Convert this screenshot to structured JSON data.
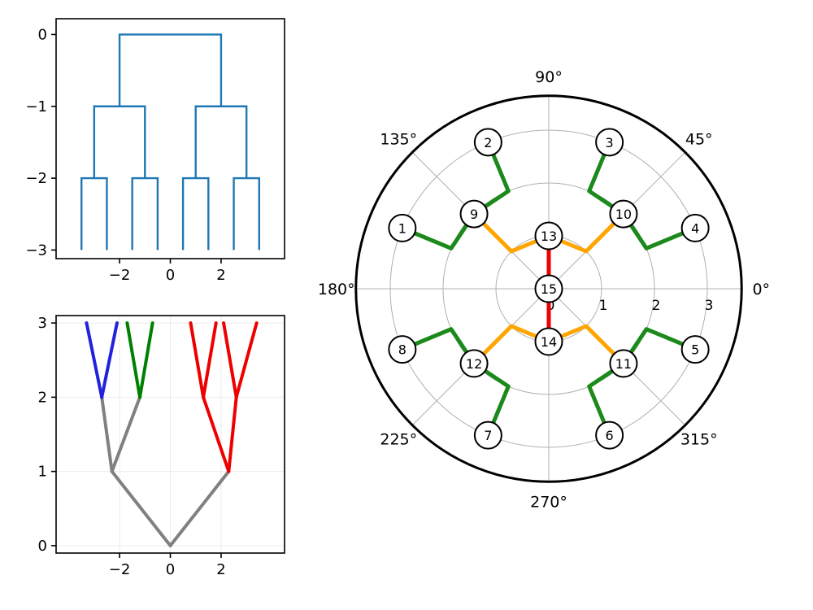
{
  "figure": {
    "background": "#ffffff",
    "description": "Three-panel tree visualization: square-link dendrogram, triangle-link colored dendrogram, and circular (polar) tree layout"
  },
  "chart_data": [
    {
      "id": "square-dendrogram",
      "type": "dendrogram",
      "link_style": "square-elbow",
      "line_color": "#1f77b4",
      "line_width": 2.4,
      "grid": false,
      "xlim": [
        -4.5,
        4.5
      ],
      "ylim": [
        -3.12,
        0.22
      ],
      "x_ticks": [
        -2,
        0,
        2
      ],
      "x_tick_labels": [
        "−2",
        "0",
        "2"
      ],
      "y_ticks": [
        0,
        -1,
        -2,
        -3
      ],
      "y_tick_labels": [
        "0",
        "−1",
        "−2",
        "−3"
      ],
      "links": [
        {
          "x1": -3.5,
          "y1": -3,
          "x2": -2.5,
          "y2": -3,
          "height": -2
        },
        {
          "x1": -1.5,
          "y1": -3,
          "x2": -0.5,
          "y2": -3,
          "height": -2
        },
        {
          "x1": 0.5,
          "y1": -3,
          "x2": 1.5,
          "y2": -3,
          "height": -2
        },
        {
          "x1": 2.5,
          "y1": -3,
          "x2": 3.5,
          "y2": -3,
          "height": -2
        },
        {
          "x1": -3,
          "y1": -2,
          "x2": -1,
          "y2": -2,
          "height": -1
        },
        {
          "x1": 1,
          "y1": -2,
          "x2": 3,
          "y2": -2,
          "height": -1
        },
        {
          "x1": -2,
          "y1": -1,
          "x2": 2,
          "y2": -1,
          "height": 0
        }
      ]
    },
    {
      "id": "triangle-dendrogram",
      "type": "dendrogram",
      "link_style": "triangle",
      "line_width": 4,
      "grid": true,
      "grid_color": "#ececec",
      "xlim": [
        -4.5,
        4.5
      ],
      "ylim": [
        -0.1,
        3.1
      ],
      "x_ticks": [
        -2,
        0,
        2
      ],
      "x_tick_labels": [
        "−2",
        "0",
        "2"
      ],
      "y_ticks": [
        0,
        1,
        2,
        3
      ],
      "y_tick_labels": [
        "0",
        "1",
        "2",
        "3"
      ],
      "cluster_colors": {
        "trunk": "#808080",
        "cluster_blue": "#2222dd",
        "cluster_green": "#008000",
        "cluster_red": "#ee0000"
      },
      "segments": [
        {
          "x1": 0,
          "y1": 0,
          "x2": -2.3,
          "y2": 1,
          "color": "#808080"
        },
        {
          "x1": 0,
          "y1": 0,
          "x2": 2.3,
          "y2": 1,
          "color": "#808080"
        },
        {
          "x1": -2.3,
          "y1": 1,
          "x2": -2.7,
          "y2": 2,
          "color": "#808080"
        },
        {
          "x1": -2.3,
          "y1": 1,
          "x2": -1.2,
          "y2": 2,
          "color": "#808080"
        },
        {
          "x1": -2.7,
          "y1": 2,
          "x2": -3.3,
          "y2": 3,
          "color": "#2222dd"
        },
        {
          "x1": -2.7,
          "y1": 2,
          "x2": -2.1,
          "y2": 3,
          "color": "#2222dd"
        },
        {
          "x1": -1.2,
          "y1": 2,
          "x2": -1.7,
          "y2": 3,
          "color": "#008000"
        },
        {
          "x1": -1.2,
          "y1": 2,
          "x2": -0.7,
          "y2": 3,
          "color": "#008000"
        },
        {
          "x1": 2.3,
          "y1": 1,
          "x2": 1.3,
          "y2": 2,
          "color": "#ee0000"
        },
        {
          "x1": 2.3,
          "y1": 1,
          "x2": 2.6,
          "y2": 2,
          "color": "#ee0000"
        },
        {
          "x1": 1.3,
          "y1": 2,
          "x2": 0.8,
          "y2": 3,
          "color": "#ee0000"
        },
        {
          "x1": 1.3,
          "y1": 2,
          "x2": 1.8,
          "y2": 3,
          "color": "#ee0000"
        },
        {
          "x1": 2.6,
          "y1": 2,
          "x2": 2.1,
          "y2": 3,
          "color": "#ee0000"
        },
        {
          "x1": 2.6,
          "y1": 2,
          "x2": 3.4,
          "y2": 3,
          "color": "#ee0000"
        }
      ]
    },
    {
      "id": "polar-tree",
      "type": "polar_tree",
      "theta_ticks_deg": [
        0,
        45,
        90,
        135,
        180,
        225,
        270,
        315
      ],
      "theta_tick_labels": [
        "0°",
        "45°",
        "90°",
        "135°",
        "180°",
        "225°",
        "270°",
        "315°"
      ],
      "r_ticks": [
        0,
        1,
        2,
        3
      ],
      "r_tick_labels": [
        "0",
        "1",
        "2",
        "3"
      ],
      "r_grid": [
        1,
        2,
        3
      ],
      "r_outer": 3.65,
      "grid_color": "#b0b0b0",
      "outer_spine_color": "#000000",
      "edge_width": 5,
      "node_fill": "#ffffff",
      "node_stroke": "#000000",
      "nodes": [
        {
          "id": "1",
          "r": 3,
          "theta": 157.5
        },
        {
          "id": "2",
          "r": 3,
          "theta": 112.5
        },
        {
          "id": "3",
          "r": 3,
          "theta": 67.5
        },
        {
          "id": "4",
          "r": 3,
          "theta": 22.5
        },
        {
          "id": "5",
          "r": 3,
          "theta": 337.5
        },
        {
          "id": "6",
          "r": 3,
          "theta": 292.5
        },
        {
          "id": "7",
          "r": 3,
          "theta": 247.5
        },
        {
          "id": "8",
          "r": 3,
          "theta": 202.5
        },
        {
          "id": "9",
          "r": 2,
          "theta": 135
        },
        {
          "id": "10",
          "r": 2,
          "theta": 45
        },
        {
          "id": "11",
          "r": 2,
          "theta": 315
        },
        {
          "id": "12",
          "r": 2,
          "theta": 225
        },
        {
          "id": "13",
          "r": 1,
          "theta": 90
        },
        {
          "id": "14",
          "r": 1,
          "theta": 270
        },
        {
          "id": "15",
          "r": 0,
          "theta": 0
        }
      ],
      "edges": [
        {
          "from": "15",
          "to": "13",
          "color": "#f00000"
        },
        {
          "from": "15",
          "to": "14",
          "color": "#f00000"
        },
        {
          "from": "13",
          "to": "9",
          "color": "#ffa500"
        },
        {
          "from": "13",
          "to": "10",
          "color": "#ffa500"
        },
        {
          "from": "14",
          "to": "12",
          "color": "#ffa500"
        },
        {
          "from": "14",
          "to": "11",
          "color": "#ffa500"
        },
        {
          "from": "9",
          "to": "1",
          "color": "#1b8a1b"
        },
        {
          "from": "9",
          "to": "2",
          "color": "#1b8a1b"
        },
        {
          "from": "10",
          "to": "3",
          "color": "#1b8a1b"
        },
        {
          "from": "10",
          "to": "4",
          "color": "#1b8a1b"
        },
        {
          "from": "12",
          "to": "8",
          "color": "#1b8a1b"
        },
        {
          "from": "12",
          "to": "7",
          "color": "#1b8a1b"
        },
        {
          "from": "11",
          "to": "6",
          "color": "#1b8a1b"
        },
        {
          "from": "11",
          "to": "5",
          "color": "#1b8a1b"
        }
      ]
    }
  ]
}
